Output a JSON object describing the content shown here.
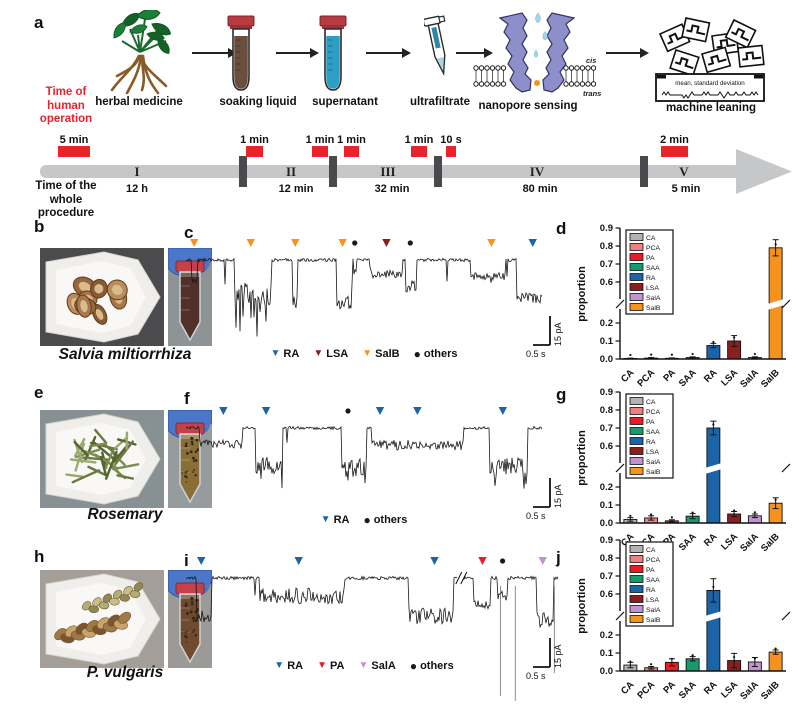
{
  "letters": {
    "a": "a",
    "b": "b",
    "c": "c",
    "d": "d",
    "e": "e",
    "f": "f",
    "g": "g",
    "h": "h",
    "i": "i",
    "j": "j"
  },
  "colors": {
    "accent_red": "#e8232a",
    "timeline_bar": "#c6c7c9",
    "timeline_divider": "#4a4a4c",
    "trace": "#161616",
    "others_marker": "#1a1a1a",
    "nanopore": "#8d8fcb",
    "droplet": "#a5d5e8",
    "glove": "#4a77c9",
    "cap": "#c4404a",
    "analytes": {
      "CA": "#b2b2b2",
      "PCA": "#f0807f",
      "PA": "#ec1c24",
      "SAA": "#189b6b",
      "RA": "#1b64a7",
      "LSA": "#8c1e1e",
      "SalA": "#c193d1",
      "SalB": "#f6921e"
    }
  },
  "workflow": {
    "human_time_label": "Time of\nhuman\noperation",
    "whole_time_label": "Time of the\nwhole\nprocedure",
    "steps": [
      {
        "label": "herbal medicine"
      },
      {
        "label": "soaking liquid"
      },
      {
        "label": "supernatant"
      },
      {
        "label": "ultrafiltrate"
      },
      {
        "label": "nanopore sensing",
        "cis": "cis",
        "trans": "trans"
      },
      {
        "label": "machine leaning",
        "box_text": "mean, standard deviation"
      }
    ],
    "timeline": {
      "op_labels": [
        "5 min",
        "1 min",
        "1 min",
        "1 min",
        "1 min",
        "10 s",
        "2 min"
      ],
      "segments": [
        {
          "numeral": "I",
          "duration": "12 h"
        },
        {
          "numeral": "II",
          "duration": "12 min"
        },
        {
          "numeral": "III",
          "duration": "32 min"
        },
        {
          "numeral": "IV",
          "duration": "80 min"
        },
        {
          "numeral": "V",
          "duration": "5 min"
        }
      ]
    }
  },
  "samples": [
    {
      "name": "Salvia miltiorrhiza",
      "photo": {
        "tray_bg": "#4b4b4e",
        "tube_bg": "#8e9396",
        "liquid": "#503029",
        "speckled": false,
        "contents": "root-slices"
      }
    },
    {
      "name": "Rosemary",
      "photo": {
        "tray_bg": "#879092",
        "tube_bg": "#969b9d",
        "liquid": "#8a6f35",
        "speckled": true,
        "contents": "leaf-needles"
      }
    },
    {
      "name": "P. vulgaris",
      "photo": {
        "tray_bg": "#a39f98",
        "tube_bg": "#9b9a96",
        "liquid": "#6f4a2f",
        "speckled": true,
        "contents": "spike-heads"
      }
    }
  ],
  "chart_data": [
    {
      "type": "line",
      "panel": "c",
      "kind": "nanopore-current-trace",
      "sample": "Salvia miltiorrhiza",
      "scalebar": {
        "current": "15 pA",
        "time": "0.5 s"
      },
      "legend": [
        "RA",
        "LSA",
        "SalB",
        "others"
      ],
      "markers": [
        {
          "t": "SalB",
          "x": 0.023
        },
        {
          "t": "SalB",
          "x": 0.182
        },
        {
          "t": "SalB",
          "x": 0.307
        },
        {
          "t": "SalB",
          "x": 0.44
        },
        {
          "t": "others",
          "x": 0.474
        },
        {
          "t": "LSA",
          "x": 0.563
        },
        {
          "t": "others",
          "x": 0.63
        },
        {
          "t": "SalB",
          "x": 0.858
        },
        {
          "t": "RA",
          "x": 0.974
        }
      ],
      "events": [
        {
          "x0": 0.016,
          "x1": 0.031,
          "d": 20,
          "n": 4,
          "sp": 8,
          "sf": 0.2
        },
        {
          "x0": 0.135,
          "x1": 0.24,
          "d": 34,
          "n": 11,
          "sp": 52,
          "sf": 0.3
        },
        {
          "x0": 0.3,
          "x1": 0.314,
          "d": 42,
          "n": 7
        },
        {
          "x0": 0.423,
          "x1": 0.466,
          "d": 40,
          "n": 9,
          "sp": 14,
          "sf": 0.22
        },
        {
          "x0": 0.47,
          "x1": 0.48,
          "d": 12,
          "n": 3
        },
        {
          "x0": 0.518,
          "x1": 0.607,
          "d": 14,
          "n": 4
        },
        {
          "x0": 0.617,
          "x1": 0.648,
          "d": 26,
          "n": 6,
          "sp": 7,
          "sf": 0.12
        },
        {
          "x0": 0.798,
          "x1": 0.897,
          "d": 16,
          "n": 4
        },
        {
          "x0": 0.928,
          "x1": 1.0,
          "d": 38,
          "n": 5
        }
      ]
    },
    {
      "type": "line",
      "panel": "f",
      "kind": "nanopore-current-trace",
      "sample": "Rosemary",
      "scalebar": {
        "current": "15 pA",
        "time": "0.5 s"
      },
      "legend": [
        "RA",
        "others"
      ],
      "markers": [
        {
          "t": "RA",
          "x": 0.105
        },
        {
          "t": "RA",
          "x": 0.225
        },
        {
          "t": "others",
          "x": 0.455
        },
        {
          "t": "RA",
          "x": 0.545
        },
        {
          "t": "RA",
          "x": 0.65
        },
        {
          "t": "RA",
          "x": 0.89
        }
      ],
      "events": [
        {
          "x0": 0.038,
          "x1": 0.158,
          "d": 16,
          "n": 4
        },
        {
          "x0": 0.196,
          "x1": 0.272,
          "d": 38,
          "n": 9,
          "sp": 40,
          "sf": 0.16
        },
        {
          "x0": 0.438,
          "x1": 0.508,
          "d": 40,
          "n": 10,
          "sp": 16,
          "sf": 0.25
        },
        {
          "x0": 0.52,
          "x1": 0.78,
          "d": 17,
          "n": 5
        },
        {
          "x0": 0.853,
          "x1": 0.96,
          "d": 38,
          "n": 9,
          "sp": 25,
          "sf": 0.15
        }
      ]
    },
    {
      "type": "line",
      "panel": "i",
      "kind": "nanopore-current-trace",
      "sample": "P. vulgaris",
      "scalebar": {
        "current": "15 pA",
        "time": "0.5 s"
      },
      "legend": [
        "RA",
        "PA",
        "SalA",
        "others"
      ],
      "gap": 0.736,
      "spikes": [
        {
          "x": 0.845,
          "len": 118
        },
        {
          "x": 0.885,
          "len": 126
        },
        {
          "x": 0.99,
          "len": 95
        }
      ],
      "markers": [
        {
          "t": "RA",
          "x": 0.041
        },
        {
          "t": "RA",
          "x": 0.303
        },
        {
          "t": "RA",
          "x": 0.668
        },
        {
          "t": "PA",
          "x": 0.797
        },
        {
          "t": "others",
          "x": 0.851
        },
        {
          "t": "SalA",
          "x": 0.959
        }
      ],
      "events": [
        {
          "x0": 0.028,
          "x1": 0.068,
          "d": 38,
          "n": 7,
          "sp": 8,
          "sf": 0.15
        },
        {
          "x0": 0.198,
          "x1": 0.425,
          "d": 18,
          "n": 8,
          "sp": 10,
          "sf": 0.08
        },
        {
          "x0": 0.598,
          "x1": 0.718,
          "d": 38,
          "n": 8,
          "sp": 8,
          "sf": 0.1
        },
        {
          "x0": 0.772,
          "x1": 0.818,
          "d": 26,
          "n": 5
        },
        {
          "x0": 0.838,
          "x1": 0.864,
          "d": 18,
          "n": 5
        },
        {
          "x0": 0.942,
          "x1": 0.988,
          "d": 42,
          "n": 8,
          "sp": 6,
          "sf": 0.1
        }
      ]
    },
    {
      "type": "bar",
      "panel": "d",
      "sample": "Salvia miltiorrhiza",
      "ylabel": "proportion",
      "categories": [
        "CA",
        "PCA",
        "PA",
        "SAA",
        "RA",
        "LSA",
        "SalA",
        "SalB"
      ],
      "values": [
        0.003,
        0.005,
        0.004,
        0.008,
        0.075,
        0.1,
        0.008,
        0.79
      ],
      "errors": [
        0.002,
        0.003,
        0.002,
        0.004,
        0.012,
        0.03,
        0.004,
        0.045
      ],
      "yticks": [
        0.0,
        0.1,
        0.2,
        0.6,
        0.7,
        0.8,
        0.9
      ],
      "ylim": [
        0,
        0.9
      ],
      "axis_break": {
        "low": 0.25,
        "high": 0.55
      },
      "legend": [
        "CA",
        "PCA",
        "PA",
        "SAA",
        "RA",
        "LSA",
        "SalA",
        "SalB"
      ]
    },
    {
      "type": "bar",
      "panel": "g",
      "sample": "Rosemary",
      "ylabel": "proportion",
      "categories": [
        "CA",
        "PCA",
        "PA",
        "SAA",
        "RA",
        "LSA",
        "SalA",
        "SalB"
      ],
      "values": [
        0.02,
        0.028,
        0.012,
        0.038,
        0.7,
        0.05,
        0.04,
        0.11
      ],
      "errors": [
        0.01,
        0.012,
        0.006,
        0.014,
        0.038,
        0.014,
        0.01,
        0.03
      ],
      "yticks": [
        0.0,
        0.1,
        0.2,
        0.6,
        0.7,
        0.8,
        0.9
      ],
      "ylim": [
        0,
        0.9
      ],
      "axis_break": {
        "low": 0.25,
        "high": 0.55
      },
      "legend": [
        "CA",
        "PCA",
        "PA",
        "SAA",
        "RA",
        "LSA",
        "SalA",
        "SalB"
      ]
    },
    {
      "type": "bar",
      "panel": "j",
      "sample": "P. vulgaris",
      "ylabel": "proportion",
      "categories": [
        "CA",
        "PCA",
        "PA",
        "SAA",
        "RA",
        "LSA",
        "SalA",
        "SalB"
      ],
      "values": [
        0.033,
        0.018,
        0.048,
        0.068,
        0.62,
        0.058,
        0.05,
        0.105
      ],
      "errors": [
        0.015,
        0.007,
        0.02,
        0.012,
        0.065,
        0.04,
        0.025,
        0.012
      ],
      "yticks": [
        0.0,
        0.1,
        0.2,
        0.6,
        0.7,
        0.8,
        0.9
      ],
      "ylim": [
        0,
        0.9
      ],
      "axis_break": {
        "low": 0.25,
        "high": 0.55
      },
      "legend": [
        "CA",
        "PCA",
        "PA",
        "SAA",
        "RA",
        "LSA",
        "SalA",
        "SalB"
      ]
    }
  ]
}
